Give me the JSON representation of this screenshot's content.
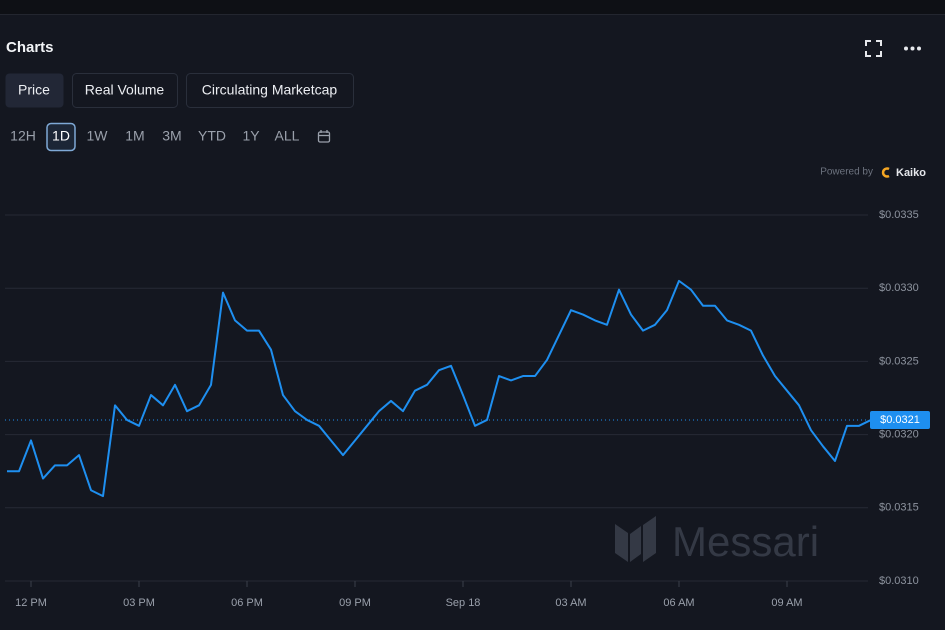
{
  "ui": {
    "title": "Charts",
    "tabs": [
      "Price",
      "Real Volume",
      "Circulating Marketcap"
    ],
    "active_tab": 0,
    "ranges": [
      "12H",
      "1D",
      "1W",
      "1M",
      "3M",
      "YTD",
      "1Y",
      "ALL"
    ],
    "active_range": 1,
    "powered_by": "Powered by",
    "provider": "Kaiko",
    "watermark": "Messari"
  },
  "chart_data": {
    "type": "line",
    "color": "#1e8ff0",
    "grid": true,
    "categories": [
      null,
      null,
      "12 PM",
      null,
      null,
      null,
      null,
      null,
      null,
      null,
      null,
      "03 PM",
      null,
      null,
      null,
      null,
      null,
      null,
      null,
      null,
      "06 PM",
      null,
      null,
      null,
      null,
      null,
      null,
      null,
      null,
      "09 PM",
      null,
      null,
      null,
      null,
      null,
      null,
      null,
      null,
      "Sep 18",
      null,
      null,
      null,
      null,
      null,
      null,
      null,
      null,
      "03 AM",
      null,
      null,
      null,
      null,
      null,
      null,
      null,
      null,
      "06 AM",
      null,
      null,
      null,
      null,
      null,
      null,
      null,
      null,
      "09 AM",
      null,
      null,
      null,
      null,
      null,
      null,
      null
    ],
    "values": [
      0.03175,
      0.03175,
      0.03196,
      0.0317,
      0.03179,
      0.03179,
      0.03186,
      0.03162,
      0.03158,
      0.0322,
      0.0321,
      0.03206,
      0.03227,
      0.0322,
      0.03234,
      0.03216,
      0.0322,
      0.03234,
      0.03297,
      0.03278,
      0.03271,
      0.03271,
      0.03258,
      0.03227,
      0.03216,
      0.0321,
      0.03206,
      0.03196,
      0.03186,
      0.03196,
      0.03206,
      0.03216,
      0.03223,
      0.03216,
      0.0323,
      0.03234,
      0.03244,
      0.03247,
      0.03227,
      0.03206,
      0.0321,
      0.0324,
      0.03237,
      0.0324,
      0.0324,
      0.03251,
      0.03268,
      0.03285,
      0.03282,
      0.03278,
      0.03275,
      0.03299,
      0.03282,
      0.03271,
      0.03275,
      0.03285,
      0.03305,
      0.03299,
      0.03288,
      0.03288,
      0.03278,
      0.03275,
      0.03271,
      0.03254,
      0.0324,
      0.0323,
      0.0322,
      0.03203,
      0.03192,
      0.03182,
      0.03206,
      0.03206,
      0.0321
    ],
    "ylim": [
      0.031,
      0.0335
    ],
    "yticks": [
      {
        "value": 0.031,
        "label": "$0.0310"
      },
      {
        "value": 0.0315,
        "label": "$0.0315"
      },
      {
        "value": 0.032,
        "label": "$0.0320"
      },
      {
        "value": 0.0325,
        "label": "$0.0325"
      },
      {
        "value": 0.033,
        "label": "$0.0330"
      },
      {
        "value": 0.0335,
        "label": "$0.0335"
      }
    ],
    "current_price": 0.0321,
    "current_price_label": "$0.0321"
  }
}
